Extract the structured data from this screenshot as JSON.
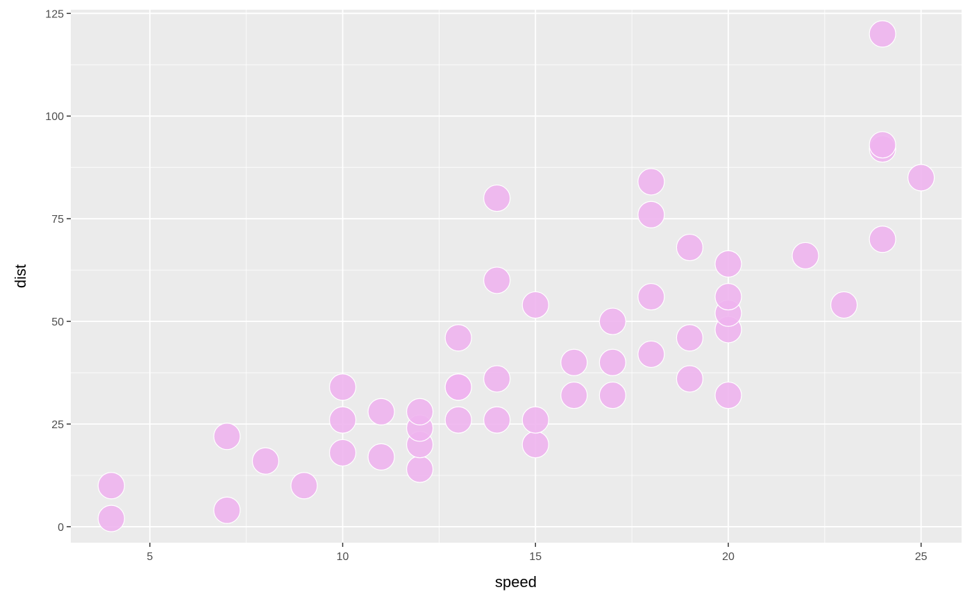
{
  "chart_data": {
    "type": "scatter",
    "title": "",
    "xlabel": "speed",
    "ylabel": "dist",
    "xlim": [
      2.95,
      26.05
    ],
    "ylim": [
      -3.9,
      125.9
    ],
    "xticks": [
      5,
      10,
      15,
      20,
      25
    ],
    "yticks": [
      0,
      25,
      50,
      75,
      100,
      125
    ],
    "grid": true,
    "colors": {
      "panel": "#EBEBEB",
      "grid": "#FFFFFF",
      "point_fill": "#EEB4EE",
      "point_stroke": "#FFFFFF"
    },
    "x": [
      4,
      4,
      7,
      7,
      8,
      9,
      10,
      10,
      10,
      11,
      11,
      12,
      12,
      12,
      12,
      13,
      13,
      13,
      13,
      14,
      14,
      14,
      14,
      15,
      15,
      15,
      16,
      16,
      17,
      17,
      17,
      18,
      18,
      18,
      18,
      19,
      19,
      19,
      20,
      20,
      20,
      20,
      20,
      22,
      23,
      24,
      24,
      24,
      24,
      25
    ],
    "y": [
      2,
      10,
      4,
      22,
      16,
      10,
      18,
      26,
      34,
      17,
      28,
      14,
      20,
      24,
      28,
      26,
      34,
      34,
      46,
      26,
      36,
      60,
      80,
      20,
      26,
      54,
      32,
      40,
      32,
      40,
      50,
      42,
      56,
      76,
      84,
      36,
      46,
      68,
      32,
      48,
      52,
      56,
      64,
      66,
      54,
      70,
      92,
      93,
      120,
      85
    ]
  }
}
